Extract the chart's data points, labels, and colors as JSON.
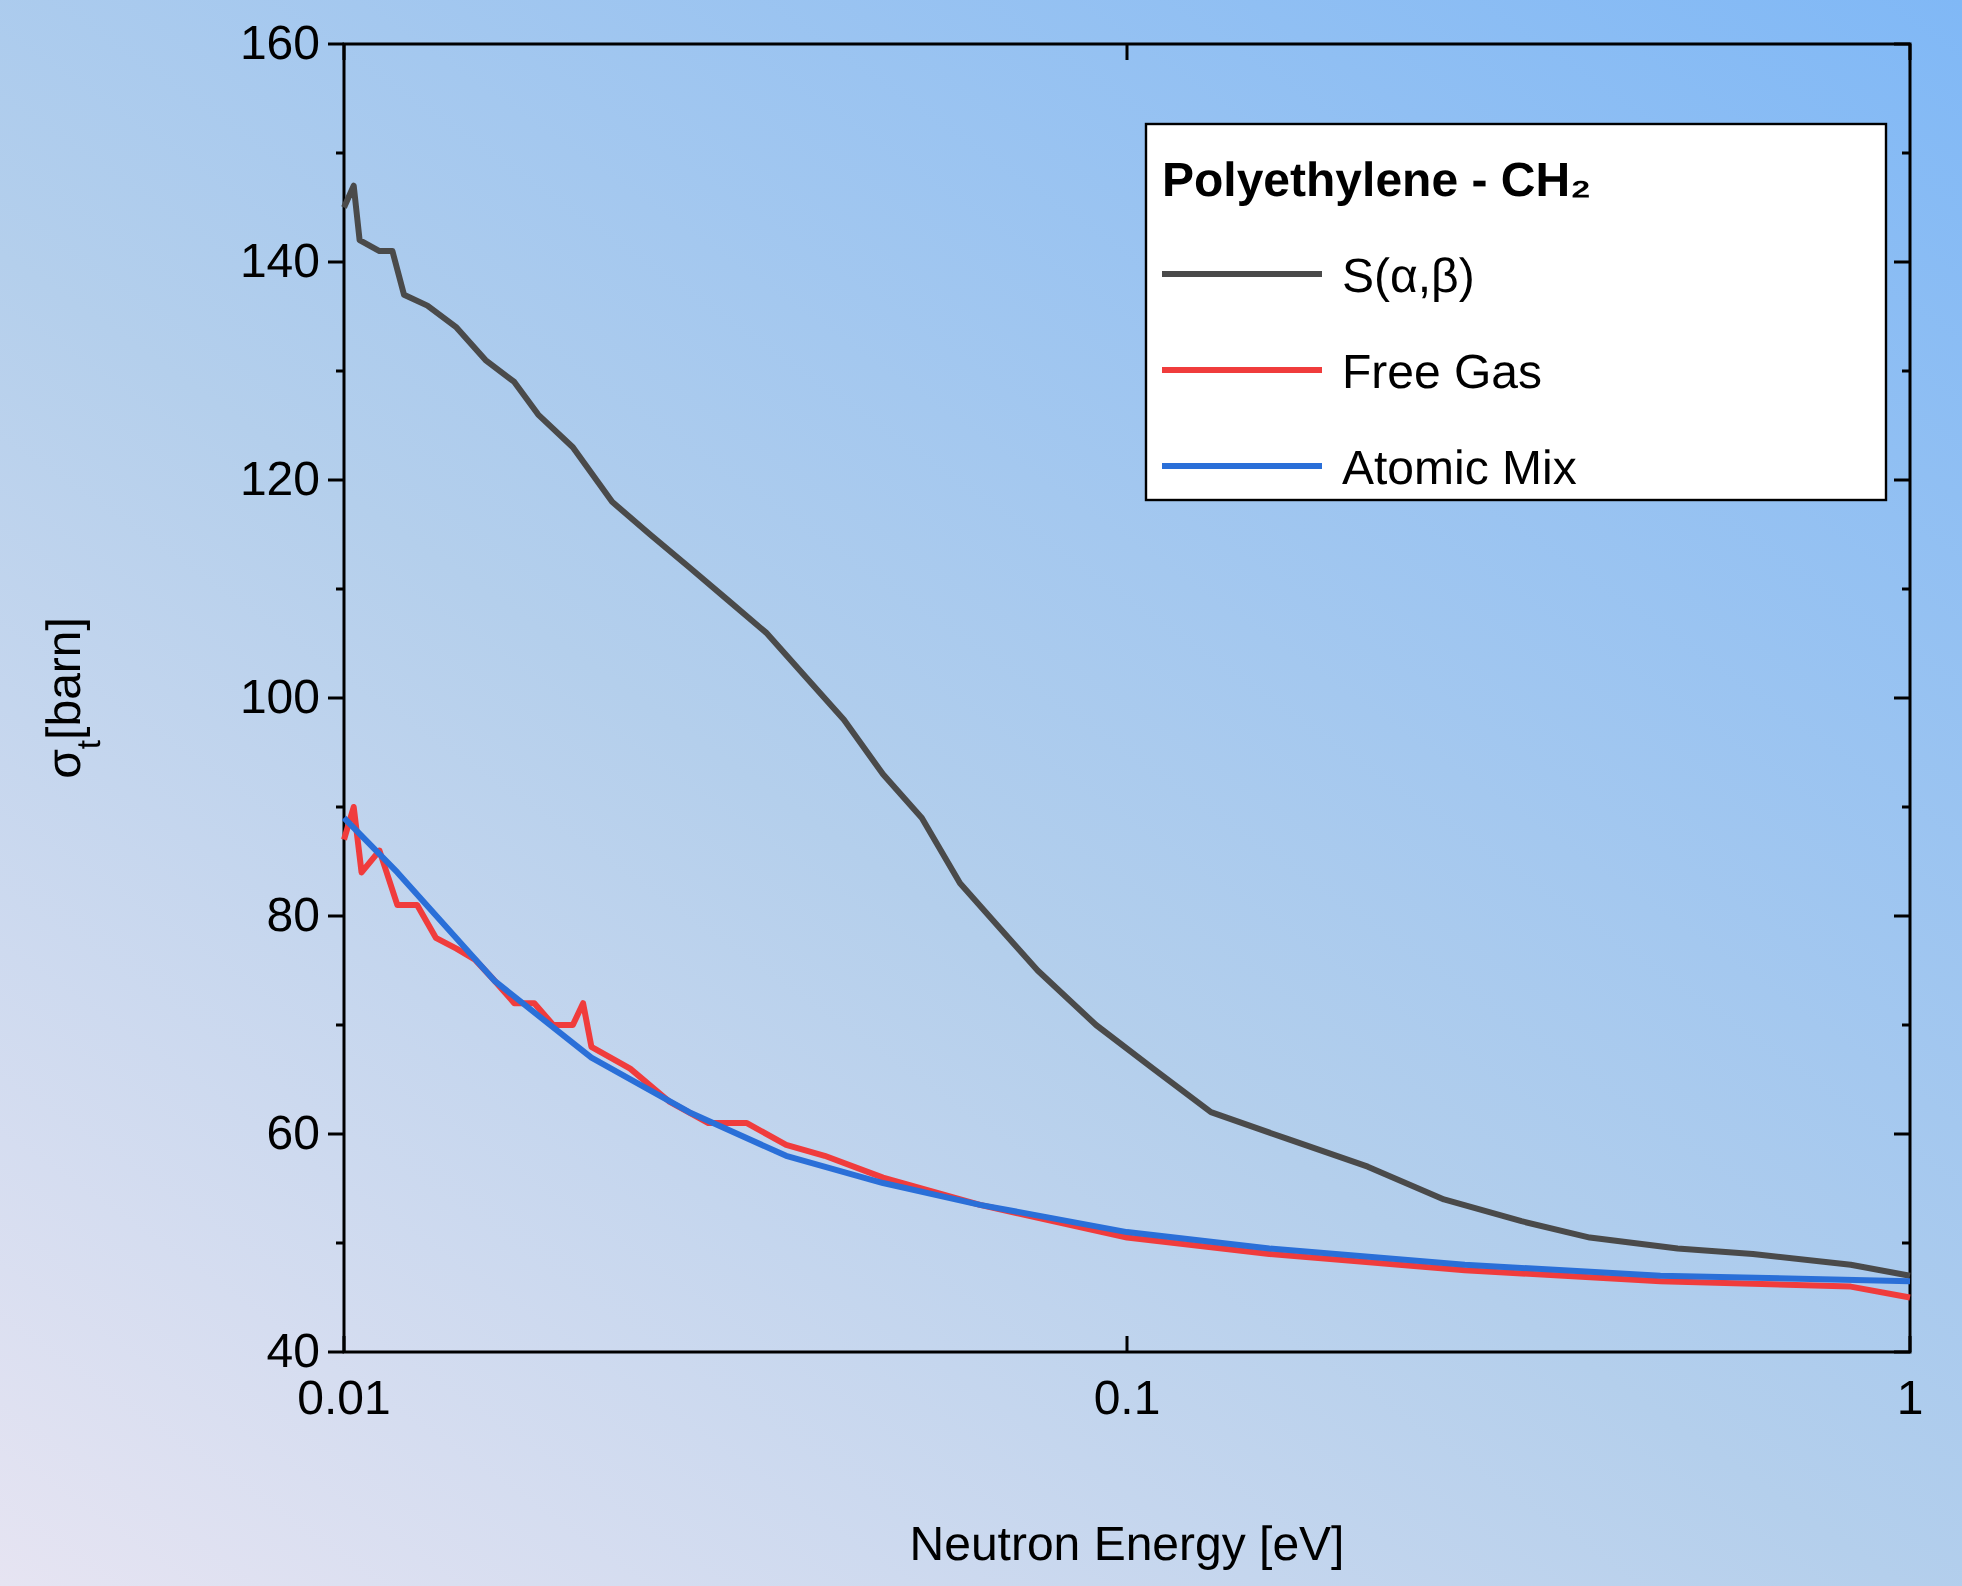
{
  "chart_data": {
    "type": "line",
    "xlabel": "Neutron Energy [eV]",
    "ylabel": "σ$_{t}$[barn]",
    "legend_title": "Polyethylene - CH₂",
    "log": "x",
    "xlim": [
      0.01,
      1
    ],
    "xticks": [
      0.01,
      0.1,
      1
    ],
    "ylim": [
      40,
      160
    ],
    "yticks": [
      40,
      {
        "value": 50,
        "label": null
      },
      60,
      {
        "value": 70,
        "label": null
      },
      80,
      {
        "value": 90,
        "label": null
      },
      100,
      {
        "value": 110,
        "label": null
      },
      120,
      {
        "value": 130,
        "label": null
      },
      140,
      {
        "value": 150,
        "label": null
      },
      160
    ],
    "grid": false,
    "legend": "top right",
    "marker": "none",
    "line_style": "solid",
    "series": [
      {
        "name": "S(α,β)",
        "color": "#4a4a4a",
        "x": [
          0.01,
          0.01029,
          0.01047,
          0.0111,
          0.01153,
          0.01193,
          0.01278,
          0.01392,
          0.01516,
          0.0165,
          0.0177,
          0.0196,
          0.022,
          0.0246,
          0.0276,
          0.0309,
          0.0346,
          0.0388,
          0.0435,
          0.0488,
          0.0547,
          0.0612,
          0.0686,
          0.0769,
          0.0913,
          0.108,
          0.128,
          0.161,
          0.203,
          0.254,
          0.319,
          0.39,
          0.505,
          0.63,
          0.84,
          1
        ],
        "values": [
          145,
          147,
          142,
          141,
          141,
          137,
          136,
          134,
          131,
          129,
          126,
          123,
          118,
          115,
          112,
          109,
          106,
          102,
          98,
          93,
          89,
          83,
          79,
          75,
          70,
          66,
          62,
          59.5,
          57,
          54,
          52,
          50.5,
          49.5,
          49,
          48,
          47
        ]
      },
      {
        "name": "Free Gas",
        "color": "#f03c3c",
        "x": [
          0.01,
          0.01029,
          0.01053,
          0.0111,
          0.0117,
          0.0124,
          0.0131,
          0.01392,
          0.0147,
          0.0156,
          0.0165,
          0.0175,
          0.0185,
          0.0196,
          0.0202,
          0.0207,
          0.0232,
          0.026,
          0.0292,
          0.0327,
          0.0367,
          0.0411,
          0.0488,
          0.0649,
          0.1,
          0.152,
          0.27,
          0.48,
          0.84,
          1
        ],
        "values": [
          87,
          90,
          84,
          86,
          81,
          81,
          78,
          77,
          76,
          74,
          72,
          72,
          70,
          70,
          72,
          68,
          66,
          63,
          61,
          61,
          59,
          58,
          56,
          53.5,
          50.5,
          49,
          47.5,
          46.5,
          46,
          45
        ]
      },
      {
        "name": "Atomic Mix",
        "color": "#2a6fd8",
        "x": [
          0.01,
          0.0117,
          0.0156,
          0.0207,
          0.0276,
          0.0367,
          0.0488,
          0.0649,
          0.1,
          0.152,
          0.27,
          0.48,
          1
        ],
        "values": [
          89,
          84,
          74,
          67,
          62,
          58,
          55.5,
          53.5,
          51,
          49.5,
          48,
          47,
          46.5
        ]
      }
    ]
  }
}
